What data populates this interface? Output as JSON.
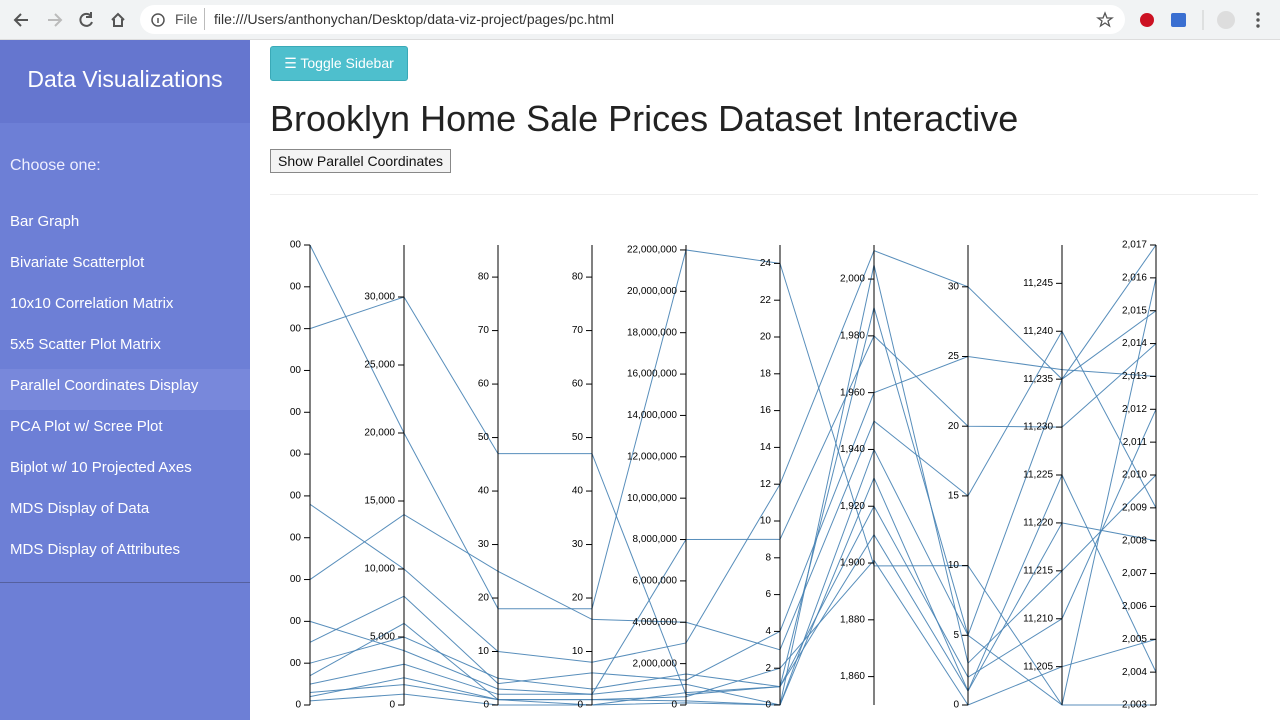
{
  "browser": {
    "file_label": "File",
    "url": "file:///Users/anthonychan/Desktop/data-viz-project/pages/pc.html"
  },
  "sidebar": {
    "title": "Data Visualizations",
    "prompt": "Choose one:",
    "active": 4,
    "items": [
      "Bar Graph",
      "Bivariate Scatterplot",
      "10x10 Correlation Matrix",
      "5x5 Scatter Plot Matrix",
      "Parallel Coordinates Display",
      "PCA Plot w/ Scree Plot",
      "Biplot w/ 10 Projected Axes",
      "MDS Display of Data",
      "MDS Display of Attributes"
    ]
  },
  "main": {
    "toggle_button": "Toggle Sidebar",
    "heading": "Brooklyn Home Sale Prices Dataset Interactive",
    "show_button": "Show Parallel Coordinates"
  },
  "chart_data": {
    "type": "parallel",
    "color": "#4682b4",
    "axes": [
      {
        "ylim": [
          0,
          1100
        ],
        "yticks": [
          0,
          {
            "value": 100,
            "label": "00"
          },
          {
            "value": 200,
            "label": "00"
          },
          {
            "value": 300,
            "label": "00"
          },
          {
            "value": 400,
            "label": "00"
          },
          {
            "value": 500,
            "label": "00"
          },
          {
            "value": 600,
            "label": "00"
          },
          {
            "value": 700,
            "label": "00"
          },
          {
            "value": 800,
            "label": "00"
          },
          {
            "value": 900,
            "label": "00"
          },
          {
            "value": 1000,
            "label": "00"
          },
          {
            "value": 1100,
            "label": "00"
          }
        ]
      },
      {
        "ylim": [
          0,
          33824
        ],
        "yticks": [
          0,
          {
            "value": 5000,
            "label": "5,000"
          },
          {
            "value": 10000,
            "label": "10,000"
          },
          {
            "value": 15000,
            "label": "15,000"
          },
          {
            "value": 20000,
            "label": "20,000"
          },
          {
            "value": 25000,
            "label": "25,000"
          },
          {
            "value": 30000,
            "label": "30,000"
          }
        ]
      },
      {
        "ylim": [
          0,
          86
        ],
        "yticks": [
          0,
          10,
          20,
          30,
          40,
          50,
          60,
          70,
          80
        ]
      },
      {
        "ylim": [
          0,
          86
        ],
        "yticks": [
          0,
          10,
          20,
          30,
          40,
          50,
          60,
          70,
          80
        ]
      },
      {
        "ylim": [
          0,
          22240000
        ],
        "yticks": [
          0,
          {
            "value": 2000000,
            "label": "2,000,000"
          },
          {
            "value": 4000000,
            "label": "4,000,000"
          },
          {
            "value": 6000000,
            "label": "6,000,000"
          },
          {
            "value": 8000000,
            "label": "8,000,000"
          },
          {
            "value": 10000000,
            "label": "10,000,000"
          },
          {
            "value": 12000000,
            "label": "12,000,000"
          },
          {
            "value": 14000000,
            "label": "14,000,000"
          },
          {
            "value": 16000000,
            "label": "16,000,000"
          },
          {
            "value": 18000000,
            "label": "18,000,000"
          },
          {
            "value": 20000000,
            "label": "20,000,000"
          },
          {
            "value": 22000000,
            "label": "22,000,000"
          }
        ]
      },
      {
        "ylim": [
          0,
          25
        ],
        "yticks": [
          0,
          2,
          4,
          6,
          8,
          10,
          12,
          14,
          16,
          18,
          20,
          22,
          24
        ]
      },
      {
        "ylim": [
          1850,
          2012
        ],
        "yticks": [
          {
            "value": 1860,
            "label": "1,860"
          },
          {
            "value": 1880,
            "label": "1,880"
          },
          {
            "value": 1900,
            "label": "1,900"
          },
          {
            "value": 1920,
            "label": "1,920"
          },
          {
            "value": 1940,
            "label": "1,940"
          },
          {
            "value": 1960,
            "label": "1,960"
          },
          {
            "value": 1980,
            "label": "1,980"
          },
          {
            "value": 2000,
            "label": "2,000"
          }
        ]
      },
      {
        "ylim": [
          0,
          33
        ],
        "yticks": [
          0,
          5,
          10,
          15,
          20,
          25,
          30
        ]
      },
      {
        "ylim": [
          11201,
          11249
        ],
        "yticks": [
          {
            "value": 11205,
            "label": "11,205"
          },
          {
            "value": 11210,
            "label": "11,210"
          },
          {
            "value": 11215,
            "label": "11,215"
          },
          {
            "value": 11220,
            "label": "11,220"
          },
          {
            "value": 11225,
            "label": "11,225"
          },
          {
            "value": 11230,
            "label": "11,230"
          },
          {
            "value": 11235,
            "label": "11,235"
          },
          {
            "value": 11240,
            "label": "11,240"
          },
          {
            "value": 11245,
            "label": "11,245"
          }
        ]
      },
      {
        "ylim": [
          2003,
          2017
        ],
        "yticks": [
          {
            "value": 2003,
            "label": "2,003"
          },
          {
            "value": 2004,
            "label": "2,004"
          },
          {
            "value": 2005,
            "label": "2,005"
          },
          {
            "value": 2006,
            "label": "2,006"
          },
          {
            "value": 2007,
            "label": "2,007"
          },
          {
            "value": 2008,
            "label": "2,008"
          },
          {
            "value": 2009,
            "label": "2,009"
          },
          {
            "value": 2010,
            "label": "2,010"
          },
          {
            "value": 2011,
            "label": "2,011"
          },
          {
            "value": 2012,
            "label": "2,012"
          },
          {
            "value": 2013,
            "label": "2,013"
          },
          {
            "value": 2014,
            "label": "2,014"
          },
          {
            "value": 2015,
            "label": "2,015"
          },
          {
            "value": 2016,
            "label": "2,016"
          },
          {
            "value": 2017,
            "label": "2,017"
          }
        ]
      }
    ],
    "lines": [
      [
        900,
        30000,
        47,
        47,
        500000,
        1,
        1990,
        5,
        11235,
        2017
      ],
      [
        50,
        3000,
        2,
        2,
        1000000,
        0,
        1930,
        1,
        11220,
        2008
      ],
      [
        100,
        5000,
        5,
        3,
        1500000,
        1,
        1920,
        2,
        11210,
        2012
      ],
      [
        1100,
        20000,
        18,
        18,
        22000000,
        24,
        1899,
        10,
        11201,
        2003
      ],
      [
        480,
        10000,
        10,
        8,
        3000000,
        12,
        2010,
        30,
        11235,
        2015
      ],
      [
        30,
        1500,
        1,
        1,
        400000,
        2,
        1901,
        0,
        11205,
        2005
      ],
      [
        200,
        4000,
        3,
        2,
        8000000,
        9,
        1980,
        20,
        11230,
        2014
      ],
      [
        70,
        6000,
        1,
        1,
        200000,
        0,
        2005,
        3,
        11215,
        2010
      ],
      [
        10,
        800,
        0,
        0,
        100000,
        0,
        1940,
        5,
        11201,
        2016
      ],
      [
        300,
        14000,
        25,
        16,
        4000000,
        3,
        1950,
        15,
        11240,
        2009
      ],
      [
        20,
        2000,
        1,
        0,
        600000,
        1,
        1910,
        1,
        11225,
        2004
      ],
      [
        150,
        8000,
        4,
        6,
        1200000,
        4,
        1960,
        25,
        11236,
        2013
      ]
    ]
  }
}
